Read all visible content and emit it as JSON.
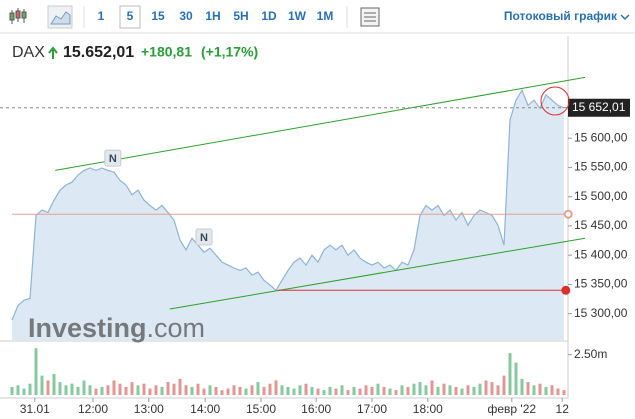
{
  "toolbar": {
    "intervals": [
      "1",
      "5",
      "15",
      "30",
      "1H",
      "5H",
      "1D",
      "1W",
      "1M"
    ],
    "stream_link": "Потоковый график"
  },
  "header": {
    "symbol": "DAX",
    "price": "15.652,01",
    "change": "+180,81",
    "change_pct": "(+1,17%)"
  },
  "watermark": [
    "Investing",
    ".com"
  ],
  "chart_data": {
    "type": "line",
    "xlim": [
      0,
      92
    ],
    "xticks": [
      {
        "value": 3.8,
        "label": "31.01"
      },
      {
        "value": 13.5,
        "label": "12:00"
      },
      {
        "value": 22.8,
        "label": "13:00"
      },
      {
        "value": 32.2,
        "label": "14:00"
      },
      {
        "value": 41.5,
        "label": "15:00"
      },
      {
        "value": 50.7,
        "label": "16:00"
      },
      {
        "value": 60,
        "label": "17:00"
      },
      {
        "value": 69.3,
        "label": "18:00"
      },
      {
        "value": 83.3,
        "label": "февр '22"
      },
      {
        "value": 91.7,
        "label": "12"
      }
    ],
    "ylim": [
      15255,
      15708
    ],
    "yticks": [
      {
        "value": 15300,
        "label": "15 300,00"
      },
      {
        "value": 15350,
        "label": "15 350,00"
      },
      {
        "value": 15400,
        "label": "15 400,00"
      },
      {
        "value": 15450,
        "label": "15 450,00"
      },
      {
        "value": 15500,
        "label": "15 500,00"
      },
      {
        "value": 15550,
        "label": "15 550,00"
      },
      {
        "value": 15600,
        "label": "15 600,00"
      }
    ],
    "y2lim": [
      0,
      3.1
    ],
    "y2ticks": [
      {
        "value": 2.5,
        "label": "2.50m"
      }
    ],
    "last_price": {
      "value": 15652.01,
      "label": "15 652,01"
    },
    "series": [
      {
        "name": "DAX",
        "color": "#8fb4d6",
        "fill": "#dce8f4",
        "values": [
          15289,
          15314,
          15323,
          15326,
          15468,
          15477,
          15473,
          15494,
          15511,
          15520,
          15525,
          15537,
          15545,
          15549,
          15545,
          15549,
          15545,
          15542,
          15528,
          15520,
          15503,
          15511,
          15494,
          15485,
          15477,
          15485,
          15473,
          15460,
          15426,
          15409,
          15429,
          15417,
          15405,
          15412,
          15400,
          15388,
          15383,
          15378,
          15374,
          15378,
          15366,
          15371,
          15357,
          15349,
          15340,
          15357,
          15374,
          15388,
          15395,
          15383,
          15400,
          15388,
          15409,
          15417,
          15409,
          15417,
          15400,
          15409,
          15395,
          15388,
          15383,
          15388,
          15378,
          15383,
          15374,
          15388,
          15383,
          15409,
          15468,
          15485,
          15477,
          15485,
          15468,
          15477,
          15460,
          15473,
          15451,
          15468,
          15477,
          15473,
          15468,
          15451,
          15417,
          15631,
          15665,
          15682,
          15656,
          15665,
          15651,
          15674,
          15665,
          15656,
          15652
        ]
      },
      {
        "name": "Volume",
        "axis": "y2",
        "up_color": "#86c99f",
        "down_color": "#e39494",
        "values": [
          0.5,
          0.6,
          0.4,
          0.7,
          2.9,
          1.2,
          0.9,
          1.3,
          0.8,
          0.6,
          0.7,
          0.5,
          0.9,
          0.6,
          0.4,
          0.5,
          0.6,
          0.9,
          0.7,
          0.5,
          0.8,
          0.6,
          0.7,
          0.4,
          0.6,
          0.5,
          0.8,
          0.7,
          1.0,
          0.6,
          0.5,
          0.7,
          0.4,
          0.6,
          0.5,
          0.3,
          0.4,
          0.6,
          0.5,
          0.4,
          0.6,
          0.8,
          0.5,
          0.7,
          0.9,
          0.6,
          0.5,
          0.4,
          0.6,
          0.7,
          0.5,
          0.4,
          0.3,
          0.5,
          0.4,
          0.6,
          0.3,
          0.5,
          0.4,
          0.6,
          0.5,
          0.7,
          0.5,
          0.4,
          0.3,
          0.6,
          0.5,
          0.7,
          0.8,
          0.6,
          0.9,
          0.5,
          0.7,
          0.6,
          0.5,
          0.4,
          0.6,
          0.5,
          0.7,
          0.9,
          0.8,
          0.6,
          1.2,
          2.6,
          2.0,
          1.0,
          0.8,
          0.6,
          0.7,
          0.5,
          0.6,
          0.4,
          0.3
        ]
      }
    ],
    "trend_lines": [
      {
        "color": "#2ca02c",
        "x": [
          7.2,
          95.5
        ],
        "values": [
          15545,
          15704
        ]
      },
      {
        "color": "#2ca02c",
        "x": [
          26.3,
          95.5
        ],
        "values": [
          15308,
          15429
        ]
      },
      {
        "color": "#e8a090",
        "x": [
          0,
          92.7
        ],
        "values": [
          15470,
          15470
        ]
      },
      {
        "color": "#d9302c",
        "x": [
          44.3,
          92.3
        ],
        "values": [
          15340,
          15340
        ]
      }
    ],
    "markers": [
      {
        "x": 16.8,
        "value": 15566,
        "label": "N"
      },
      {
        "x": 32,
        "value": 15431,
        "label": "N"
      }
    ]
  }
}
